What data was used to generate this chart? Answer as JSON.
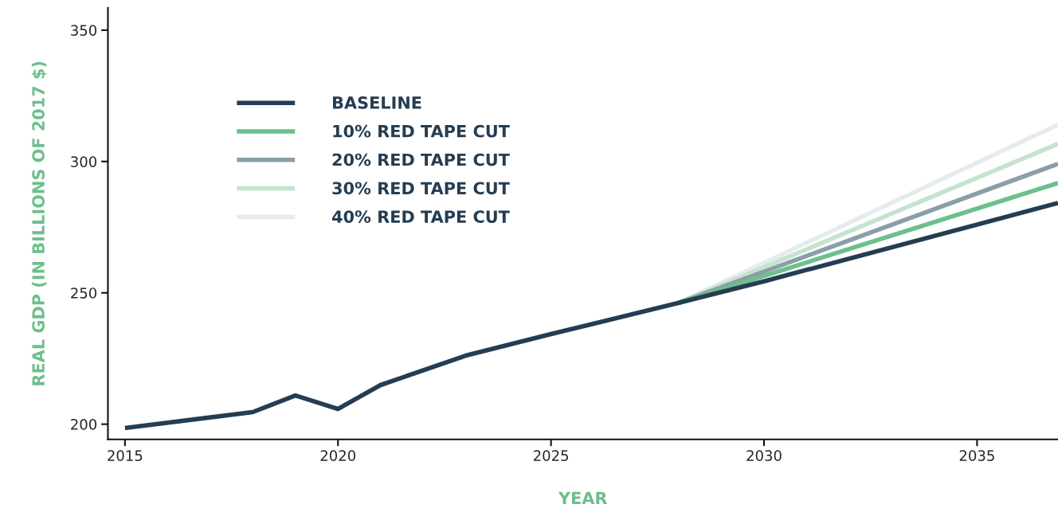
{
  "chart_data": {
    "type": "line",
    "xlabel": "YEAR",
    "ylabel": "REAL GDP (IN BILLIONS OF 2017 $)",
    "xlim": [
      2014.6,
      2036.9
    ],
    "xticks": [
      2015,
      2020,
      2025,
      2030,
      2035
    ],
    "ylim": [
      194.2,
      358.5
    ],
    "yticks": [
      200,
      250,
      300,
      350
    ],
    "grid": false,
    "legend": "top left",
    "marker": "none",
    "line_style": "solid",
    "series": [
      {
        "name": "BASELINE",
        "color": "#253d52",
        "x": [
          2015,
          2018,
          2019,
          2020,
          2021,
          2023,
          2025,
          2028,
          2030,
          2036.9
        ],
        "values": [
          198.5,
          204.6,
          210.9,
          205.8,
          214.9,
          226.1,
          234.3,
          246.2,
          254.4,
          284.2
        ]
      },
      {
        "name": "10% RED TAPE CUT",
        "color": "#6dbf8b",
        "x": [
          2028,
          2036.9
        ],
        "values": [
          246.2,
          291.8
        ]
      },
      {
        "name": "20% RED TAPE CUT",
        "color": "#8a9ea8",
        "x": [
          2028,
          2036.9
        ],
        "values": [
          246.2,
          299.1
        ]
      },
      {
        "name": "30% RED TAPE CUT",
        "color": "#c5e3cf",
        "x": [
          2028,
          2036.9
        ],
        "values": [
          246.2,
          306.7
        ]
      },
      {
        "name": "40% RED TAPE CUT",
        "color": "#e6ecee",
        "x": [
          2028,
          2036.9
        ],
        "values": [
          246.2,
          314.0
        ]
      }
    ]
  }
}
